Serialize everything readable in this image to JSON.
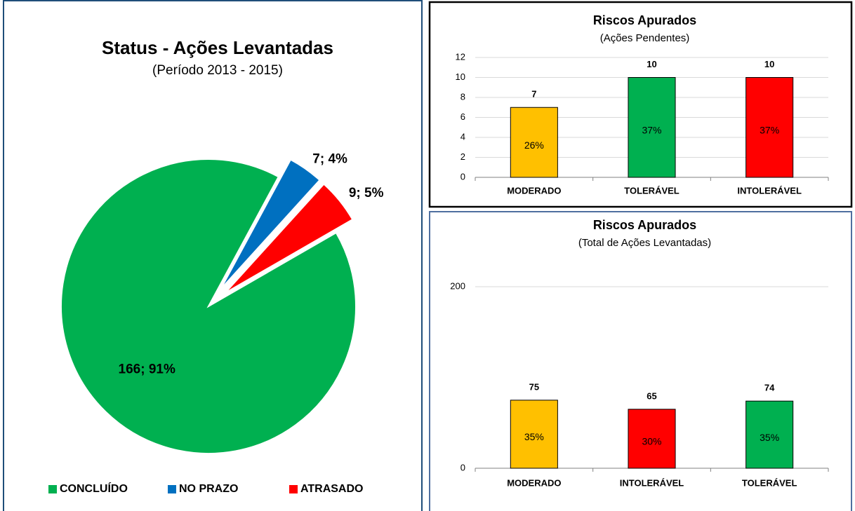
{
  "chart_data": [
    {
      "type": "pie",
      "title": "Status - Ações Levantadas",
      "subtitle": "(Período 2013 - 2015)",
      "categories": [
        "CONCLUÍDO",
        "NO PRAZO",
        "ATRASADO"
      ],
      "values": [
        166,
        7,
        9
      ],
      "value_labels": [
        "166; 91%",
        "7; 4%",
        "9; 5%"
      ],
      "colors": [
        "#00b050",
        "#0070c0",
        "#ff0000"
      ],
      "legend": "bottom"
    },
    {
      "type": "bar",
      "title": "Riscos Apurados",
      "subtitle": "(Ações Pendentes)",
      "categories": [
        "MODERADO",
        "TOLERÁVEL",
        "INTOLERÁVEL"
      ],
      "values": [
        7,
        10,
        10
      ],
      "percent_labels": [
        "26%",
        "37%",
        "37%"
      ],
      "colors": [
        "#ffc000",
        "#00b050",
        "#ff0000"
      ],
      "ylim": [
        0,
        12
      ],
      "yticks": [
        0,
        2,
        4,
        6,
        8,
        10,
        12
      ],
      "grid": true
    },
    {
      "type": "bar",
      "title": "Riscos Apurados",
      "subtitle": "(Total de Ações Levantadas)",
      "categories": [
        "MODERADO",
        "INTOLERÁVEL",
        "TOLERÁVEL"
      ],
      "values": [
        75,
        65,
        74
      ],
      "percent_labels": [
        "35%",
        "30%",
        "35%"
      ],
      "colors": [
        "#ffc000",
        "#ff0000",
        "#00b050"
      ],
      "ylim": [
        0,
        200
      ],
      "yticks": [
        0,
        200
      ],
      "grid": true
    }
  ]
}
